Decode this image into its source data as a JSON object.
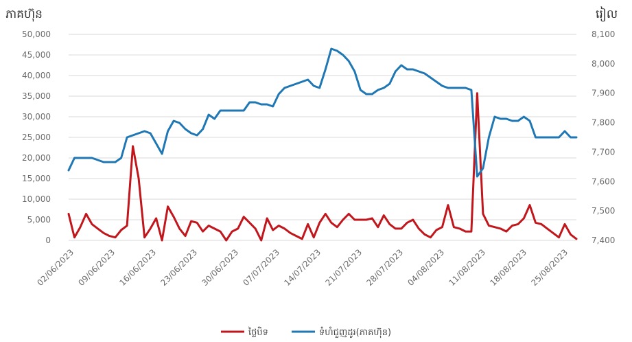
{
  "chart_data": {
    "type": "line",
    "y_left_label": "ភាគហ៊ុន",
    "y_right_label": "រៀល",
    "y_left_ticks": [
      "0",
      "5,000",
      "10,000",
      "15,000",
      "20,000",
      "25,000",
      "30,000",
      "35,000",
      "40,000",
      "45,000",
      "50,000"
    ],
    "y_right_ticks": [
      "7,400",
      "7,500",
      "7,600",
      "7,700",
      "7,800",
      "7,900",
      "8,000",
      "8,100"
    ],
    "ylim_left": [
      0,
      50000
    ],
    "ylim_right": [
      7400,
      8100
    ],
    "x_tick_labels": [
      "02/06/2023",
      "09/06/2023",
      "16/06/2023",
      "23/06/2023",
      "30/06/2023",
      "07/07/2023",
      "14/07/2023",
      "21/07/2023",
      "28/07/2023",
      "04/08/2023",
      "11/08/2023",
      "18/08/2023",
      "25/08/2023"
    ],
    "grid": true,
    "legend_position": "bottom",
    "series": [
      {
        "name": "ថ្លៃបិទ",
        "axis": "right",
        "color": "#c0161c",
        "values": [
          7490,
          7410,
          7445,
          7490,
          7455,
          7440,
          7425,
          7415,
          7410,
          7435,
          7450,
          7720,
          7610,
          7410,
          7440,
          7475,
          7400,
          7515,
          7480,
          7440,
          7415,
          7465,
          7460,
          7430,
          7450,
          7440,
          7430,
          7400,
          7430,
          7440,
          7480,
          7460,
          7440,
          7400,
          7475,
          7435,
          7450,
          7440,
          7425,
          7415,
          7405,
          7455,
          7410,
          7460,
          7490,
          7460,
          7445,
          7470,
          7490,
          7470,
          7470,
          7470,
          7475,
          7445,
          7485,
          7455,
          7440,
          7440,
          7460,
          7470,
          7440,
          7420,
          7410,
          7435,
          7445,
          7520,
          7445,
          7440,
          7430,
          7430,
          7900,
          7490,
          7450,
          7445,
          7440,
          7430,
          7450,
          7455,
          7475,
          7520,
          7460,
          7455,
          7440,
          7425,
          7410,
          7455,
          7420,
          7405
        ]
      },
      {
        "name": "ទំហំជួញដូរ(ភាគហ៊ុន)",
        "axis": "left",
        "color": "#1f77b4",
        "values": [
          17000,
          20000,
          20000,
          20000,
          20000,
          19500,
          19000,
          19000,
          19000,
          20000,
          25000,
          25500,
          26000,
          26500,
          26000,
          23500,
          21000,
          26500,
          29000,
          28500,
          27000,
          26000,
          25500,
          27000,
          30500,
          29500,
          31500,
          31500,
          31500,
          31500,
          31500,
          33500,
          33500,
          33000,
          33000,
          32500,
          35500,
          37000,
          37500,
          38000,
          38500,
          39000,
          37500,
          37000,
          41500,
          46500,
          46000,
          45000,
          43500,
          41000,
          36500,
          35500,
          35500,
          36500,
          37000,
          38000,
          41000,
          42500,
          41500,
          41500,
          41000,
          40500,
          39500,
          38500,
          37500,
          37000,
          37000,
          37000,
          37000,
          36500,
          15500,
          17500,
          25000,
          30000,
          29500,
          29500,
          29000,
          29000,
          30000,
          29000,
          25000,
          25000,
          25000,
          25000,
          25000,
          26500,
          25000,
          25000
        ]
      }
    ]
  }
}
